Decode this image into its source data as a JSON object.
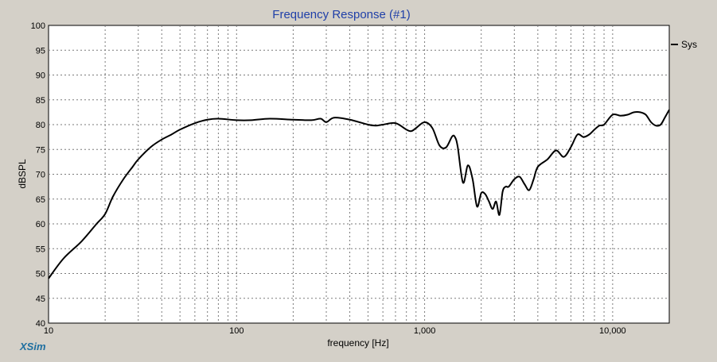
{
  "app": {
    "brand": "XSim"
  },
  "chart_data": {
    "type": "line",
    "title": "Frequency Response (#1)",
    "xlabel": "frequency [Hz]",
    "ylabel": "dBSPL",
    "xscale": "log",
    "xlim": [
      10,
      20000
    ],
    "ylim": [
      40,
      100
    ],
    "x_tick_labels": [
      {
        "value": 10,
        "label": "10"
      },
      {
        "value": 100,
        "label": "100"
      },
      {
        "value": 1000,
        "label": "1,000"
      },
      {
        "value": 10000,
        "label": "10,000"
      }
    ],
    "y_ticks": [
      40,
      45,
      50,
      55,
      60,
      65,
      70,
      75,
      80,
      85,
      90,
      95,
      100
    ],
    "grid": true,
    "legend": {
      "placement": "top-right",
      "entries": [
        "Sys"
      ]
    },
    "series": [
      {
        "name": "Sys",
        "color": "#000000",
        "x": [
          10,
          12,
          15,
          18,
          20,
          22,
          25,
          28,
          30,
          35,
          40,
          45,
          50,
          60,
          70,
          80,
          100,
          120,
          150,
          200,
          250,
          280,
          300,
          330,
          400,
          500,
          550,
          600,
          700,
          800,
          850,
          900,
          1000,
          1100,
          1200,
          1300,
          1400,
          1450,
          1500,
          1600,
          1700,
          1800,
          1900,
          2000,
          2100,
          2200,
          2300,
          2400,
          2500,
          2600,
          2700,
          2800,
          3000,
          3200,
          3400,
          3600,
          3800,
          4000,
          4500,
          5000,
          5500,
          6000,
          6500,
          7000,
          7500,
          8000,
          8500,
          9000,
          10000,
          11000,
          12000,
          13000,
          14000,
          15000,
          16000,
          17000,
          18000,
          19000,
          20000
        ],
        "y": [
          49,
          53,
          56.5,
          60,
          62,
          65.5,
          69,
          71.5,
          73,
          75.5,
          77,
          78,
          79,
          80.3,
          81,
          81.2,
          80.9,
          80.9,
          81.2,
          81,
          80.9,
          81.2,
          80.5,
          81.4,
          81,
          80,
          79.8,
          80,
          80.3,
          79,
          78.7,
          79.3,
          80.5,
          79.3,
          75.8,
          75.4,
          77.6,
          77.5,
          75.5,
          68.3,
          71.8,
          69,
          63.5,
          66.2,
          66,
          64.5,
          63,
          64.5,
          61.8,
          66.5,
          67.5,
          67.5,
          69,
          69.5,
          68,
          66.8,
          69,
          71.5,
          73,
          74.8,
          73.5,
          75.5,
          78,
          77.5,
          78,
          79,
          79.8,
          80,
          82,
          81.8,
          82,
          82.5,
          82.5,
          82,
          80.5,
          79.8,
          80,
          81.5,
          83
        ]
      }
    ]
  }
}
